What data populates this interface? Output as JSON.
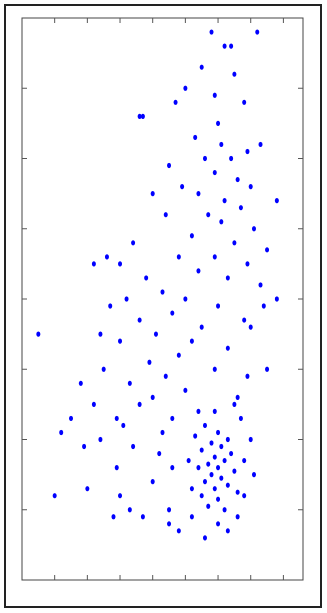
{
  "chart_data": {
    "type": "scatter",
    "color": "#0000ff",
    "grid": false,
    "xlim": [
      0,
      8.6
    ],
    "ylim": [
      0,
      8
    ],
    "xticks": [
      1,
      2,
      3,
      4,
      5,
      6,
      7,
      8
    ],
    "yticks": [
      1,
      2,
      3,
      4,
      5,
      6,
      7
    ],
    "x": [
      5.8,
      6.4,
      6.2,
      7.2,
      5.5,
      6.5,
      5.0,
      4.7,
      5.9,
      6.8,
      3.7,
      3.6,
      6.0,
      5.3,
      6.1,
      6.9,
      7.3,
      5.6,
      6.4,
      4.5,
      5.9,
      6.6,
      7.0,
      4.9,
      5.4,
      6.2,
      4.0,
      7.8,
      6.7,
      5.7,
      4.4,
      6.1,
      7.1,
      5.2,
      3.4,
      6.5,
      7.5,
      5.9,
      4.8,
      6.9,
      2.6,
      2.2,
      3.0,
      5.4,
      6.3,
      3.8,
      7.3,
      4.3,
      5.0,
      7.8,
      3.2,
      6.0,
      2.7,
      4.6,
      6.8,
      3.6,
      5.5,
      7.0,
      4.1,
      2.4,
      0.5,
      5.2,
      3.0,
      6.3,
      4.8,
      3.9,
      7.5,
      2.5,
      5.9,
      4.4,
      3.3,
      1.8,
      5.0,
      6.6,
      4.0,
      2.2,
      3.6,
      5.4,
      4.6,
      2.9,
      5.6,
      6.0,
      6.3,
      5.8,
      6.1,
      5.5,
      6.4,
      5.9,
      6.2,
      5.7,
      6.0,
      5.4,
      6.5,
      5.8,
      6.1,
      5.6,
      6.3,
      5.9,
      6.6,
      5.5,
      6.0,
      5.7,
      6.2,
      5.3,
      6.7,
      5.1,
      6.8,
      5.9,
      6.5,
      5.2,
      1.2,
      1.5,
      1.0,
      2.0,
      2.9,
      3.4,
      4.0,
      3.7,
      4.5,
      4.5,
      3.3,
      4.8,
      5.6,
      6.0,
      2.8,
      4.2,
      3.0,
      4.6,
      7.1,
      6.8,
      2.4,
      3.1,
      1.9,
      4.3,
      6.9,
      7.4,
      7.0,
      6.6,
      5.2,
      6.3
    ],
    "values": [
      7.8,
      7.6,
      7.6,
      7.8,
      7.3,
      7.2,
      7.0,
      6.8,
      6.9,
      6.8,
      6.6,
      6.6,
      6.5,
      6.3,
      6.2,
      6.1,
      6.2,
      6.0,
      6.0,
      5.9,
      5.8,
      5.7,
      5.6,
      5.6,
      5.5,
      5.4,
      5.5,
      5.4,
      5.3,
      5.2,
      5.2,
      5.1,
      5.0,
      4.9,
      4.8,
      4.8,
      4.7,
      4.6,
      4.6,
      4.5,
      4.6,
      4.5,
      4.5,
      4.4,
      4.3,
      4.3,
      4.2,
      4.1,
      4.0,
      4.0,
      4.0,
      3.9,
      3.9,
      3.8,
      3.7,
      3.7,
      3.6,
      3.6,
      3.5,
      3.5,
      3.5,
      3.4,
      3.4,
      3.3,
      3.2,
      3.1,
      3.0,
      3.0,
      3.0,
      2.9,
      2.8,
      2.8,
      2.7,
      2.6,
      2.6,
      2.5,
      2.5,
      2.4,
      2.3,
      2.3,
      2.2,
      2.1,
      2.0,
      1.95,
      1.9,
      1.85,
      1.8,
      1.75,
      1.7,
      1.65,
      1.6,
      1.6,
      1.55,
      1.5,
      1.45,
      1.4,
      1.35,
      1.3,
      1.25,
      1.2,
      1.15,
      1.05,
      1.0,
      2.05,
      2.3,
      1.7,
      1.7,
      2.4,
      2.5,
      1.3,
      2.1,
      2.3,
      1.2,
      1.3,
      1.6,
      1.9,
      1.4,
      0.9,
      1.0,
      0.8,
      1.0,
      0.7,
      0.6,
      0.8,
      0.9,
      1.8,
      1.2,
      1.6,
      1.5,
      1.2,
      2.0,
      2.2,
      1.9,
      2.1,
      2.9,
      3.9,
      2.0,
      0.9,
      0.9,
      0.7
    ]
  }
}
